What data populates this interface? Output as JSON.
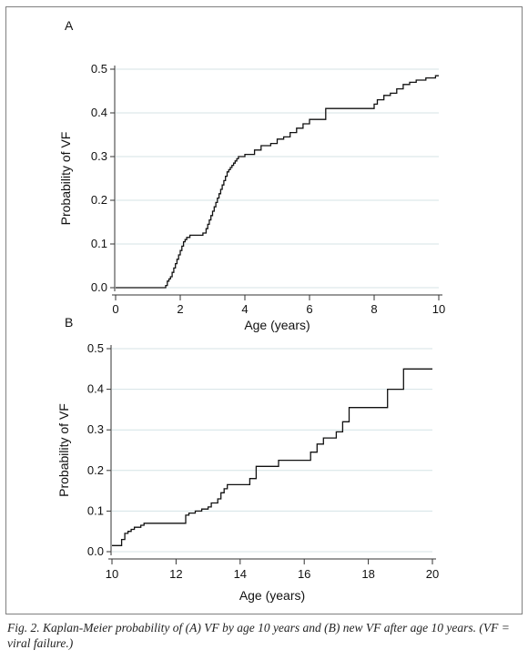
{
  "caption": "Fig. 2. Kaplan-Meier probability of (A) VF by age 10 years and (B) new VF after age 10 years. (VF = viral failure.)",
  "chart_data": [
    {
      "type": "line",
      "step": true,
      "panel_label": "A",
      "title": "",
      "xlabel": "Age (years)",
      "ylabel": "Probability of VF",
      "xlim": [
        0,
        10
      ],
      "ylim": [
        0,
        0.5
      ],
      "xticks": [
        "0",
        "2",
        "4",
        "6",
        "8",
        "10"
      ],
      "yticks": [
        "0.0",
        "0.1",
        "0.2",
        "0.3",
        "0.4",
        "0.5"
      ],
      "grid": true,
      "series": [
        {
          "x": [
            0,
            1.55,
            1.6,
            1.65,
            1.7,
            1.75,
            1.8,
            1.85,
            1.9,
            1.95,
            2.0,
            2.05,
            2.1,
            2.15,
            2.2,
            2.3,
            2.5,
            2.7,
            2.8,
            2.85,
            2.9,
            2.95,
            3.0,
            3.05,
            3.1,
            3.15,
            3.2,
            3.25,
            3.3,
            3.35,
            3.4,
            3.45,
            3.5,
            3.55,
            3.6,
            3.65,
            3.7,
            3.75,
            3.8,
            3.9,
            4.0,
            4.3,
            4.5,
            4.8,
            5.0,
            5.2,
            5.4,
            5.6,
            5.8,
            6.0,
            6.5,
            7.0,
            7.5,
            7.9,
            8.0,
            8.1,
            8.3,
            8.5,
            8.7,
            8.9,
            9.1,
            9.3,
            9.6,
            9.9,
            10
          ],
          "y": [
            0.0,
            0.005,
            0.015,
            0.02,
            0.025,
            0.035,
            0.045,
            0.055,
            0.065,
            0.075,
            0.085,
            0.095,
            0.105,
            0.11,
            0.115,
            0.12,
            0.12,
            0.125,
            0.135,
            0.145,
            0.155,
            0.165,
            0.175,
            0.185,
            0.195,
            0.205,
            0.215,
            0.225,
            0.235,
            0.245,
            0.255,
            0.265,
            0.27,
            0.275,
            0.28,
            0.285,
            0.29,
            0.295,
            0.3,
            0.3,
            0.305,
            0.315,
            0.325,
            0.33,
            0.34,
            0.345,
            0.355,
            0.365,
            0.375,
            0.385,
            0.41,
            0.41,
            0.41,
            0.41,
            0.42,
            0.43,
            0.44,
            0.445,
            0.455,
            0.465,
            0.47,
            0.475,
            0.48,
            0.485,
            0.485
          ]
        }
      ]
    },
    {
      "type": "line",
      "step": true,
      "panel_label": "B",
      "title": "",
      "xlabel": "Age (years)",
      "ylabel": "Probability of VF",
      "xlim": [
        10,
        20
      ],
      "ylim": [
        0,
        0.5
      ],
      "xticks": [
        "10",
        "12",
        "14",
        "16",
        "18",
        "20"
      ],
      "yticks": [
        "0.0",
        "0.1",
        "0.2",
        "0.3",
        "0.4",
        "0.5"
      ],
      "grid": true,
      "series": [
        {
          "x": [
            10,
            10.3,
            10.4,
            10.5,
            10.6,
            10.7,
            10.9,
            11.0,
            12.0,
            12.3,
            12.4,
            12.6,
            12.7,
            12.8,
            13.0,
            13.1,
            13.3,
            13.4,
            13.5,
            13.6,
            13.7,
            14.0,
            14.3,
            14.5,
            15.0,
            15.2,
            16.0,
            16.2,
            16.4,
            16.6,
            17.0,
            17.2,
            17.4,
            17.6,
            18.0,
            18.6,
            19.1,
            19.6,
            20
          ],
          "y": [
            0.015,
            0.03,
            0.045,
            0.05,
            0.055,
            0.06,
            0.065,
            0.07,
            0.07,
            0.09,
            0.095,
            0.1,
            0.1,
            0.105,
            0.11,
            0.12,
            0.13,
            0.145,
            0.155,
            0.165,
            0.165,
            0.165,
            0.18,
            0.21,
            0.21,
            0.225,
            0.225,
            0.245,
            0.265,
            0.28,
            0.295,
            0.32,
            0.355,
            0.355,
            0.355,
            0.4,
            0.45,
            0.45,
            0.45
          ]
        }
      ]
    }
  ]
}
